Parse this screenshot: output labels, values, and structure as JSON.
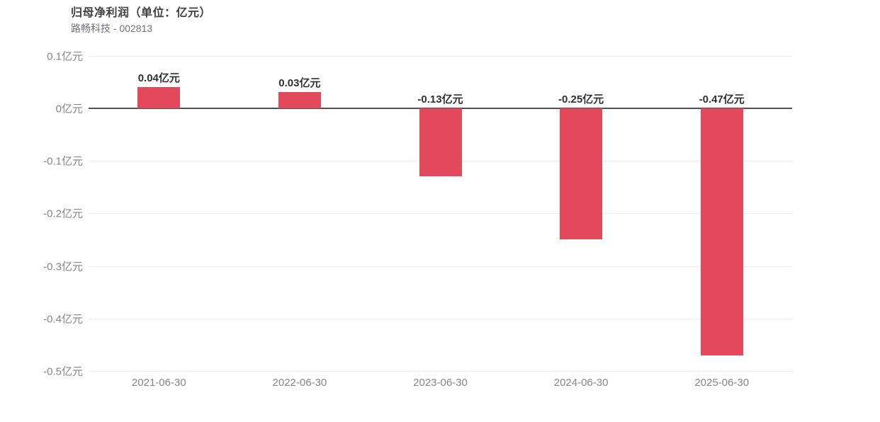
{
  "header": {
    "title": "归母净利润（单位：亿元）",
    "subtitle": "路畅科技 - 002813"
  },
  "chart_data": {
    "type": "bar",
    "title": "归母净利润（单位：亿元）",
    "subtitle": "路畅科技 - 002813",
    "unit": "亿元",
    "categories": [
      "2021-06-30",
      "2022-06-30",
      "2023-06-30",
      "2024-06-30",
      "2025-06-30"
    ],
    "values": [
      0.04,
      0.03,
      -0.13,
      -0.25,
      -0.47
    ],
    "value_labels": [
      "0.04亿元",
      "0.03亿元",
      "-0.13亿元",
      "-0.25亿元",
      "-0.47亿元"
    ],
    "xlabel": "",
    "ylabel": "",
    "ylim": [
      -0.5,
      0.1
    ],
    "y_ticks": [
      0.1,
      0,
      -0.1,
      -0.2,
      -0.3,
      -0.4,
      -0.5
    ],
    "y_tick_labels": [
      "0.1亿元",
      "0亿元",
      "-0.1亿元",
      "-0.2亿元",
      "-0.3亿元",
      "-0.4亿元",
      "-0.5亿元"
    ],
    "grid": true,
    "legend_position": "none",
    "bar_color": "#e4495b",
    "grid_color": "#ececf1",
    "zero_line_color": "#51515a",
    "label_color": "#2f2f34",
    "axis_text_color": "#85858d"
  }
}
